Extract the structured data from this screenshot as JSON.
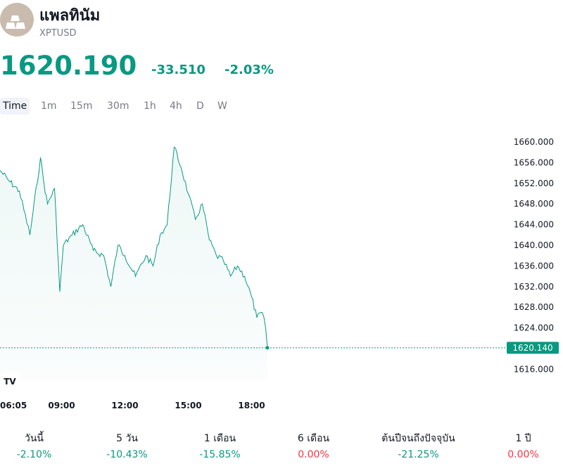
{
  "header": {
    "name": "แพลทินัม",
    "symbol": "XPTUSD",
    "logo_icon": "platinum-bars-icon"
  },
  "quote": {
    "price": "1620.190",
    "change": "-33.510",
    "change_percent": "-2.03%",
    "color": "#089981"
  },
  "timeframes": [
    "Time",
    "1m",
    "15m",
    "30m",
    "1h",
    "4h",
    "D",
    "W"
  ],
  "active_timeframe": "Time",
  "chart_data": {
    "type": "area",
    "y_ticks": [
      "1660.000",
      "1656.000",
      "1652.000",
      "1648.000",
      "1644.000",
      "1640.000",
      "1636.000",
      "1632.000",
      "1628.000",
      "1624.000",
      "1616.000"
    ],
    "x_ticks": [
      "06:05",
      "09:00",
      "12:00",
      "15:00",
      "18:00"
    ],
    "ylim": [
      1614,
      1663
    ],
    "last_price_label": "1620.140",
    "line_color": "#089981",
    "badge": "TV",
    "series": [
      {
        "x": [
          "06:05",
          "06:30",
          "07:00",
          "07:30",
          "08:00",
          "08:10",
          "08:20",
          "08:40",
          "08:55",
          "09:05",
          "09:30",
          "10:00",
          "10:30",
          "11:00",
          "11:20",
          "11:40",
          "12:00",
          "12:30",
          "13:00",
          "13:20",
          "13:40",
          "14:00",
          "14:20",
          "14:40",
          "15:00",
          "15:20",
          "15:40",
          "16:00",
          "16:20",
          "16:40",
          "17:00",
          "17:20",
          "17:40",
          "18:00",
          "18:15",
          "18:30",
          "18:40",
          "18:45"
        ],
        "values": [
          1654.5,
          1652.5,
          1650.5,
          1642,
          1657,
          1652,
          1648,
          1651,
          1631,
          1640,
          1642,
          1644,
          1639,
          1638,
          1632,
          1640,
          1638,
          1634,
          1638,
          1636,
          1642,
          1644,
          1659,
          1655,
          1650,
          1645,
          1648,
          1641,
          1638,
          1637,
          1634,
          1636,
          1634,
          1630,
          1626,
          1627,
          1624,
          1620.14
        ]
      }
    ]
  },
  "performance": [
    {
      "label": "วันนี้",
      "value": "-2.10%",
      "color": "#089981"
    },
    {
      "label": "5 วัน",
      "value": "-10.43%",
      "color": "#089981"
    },
    {
      "label": "1 เดือน",
      "value": "-15.85%",
      "color": "#089981"
    },
    {
      "label": "6 เดือน",
      "value": "0.00%",
      "color": "#f23645"
    },
    {
      "label": "ต้นปีจนถึงปัจจุบัน",
      "value": "-21.25%",
      "color": "#089981"
    },
    {
      "label": "1 ปี",
      "value": "0.00%",
      "color": "#f23645"
    }
  ]
}
